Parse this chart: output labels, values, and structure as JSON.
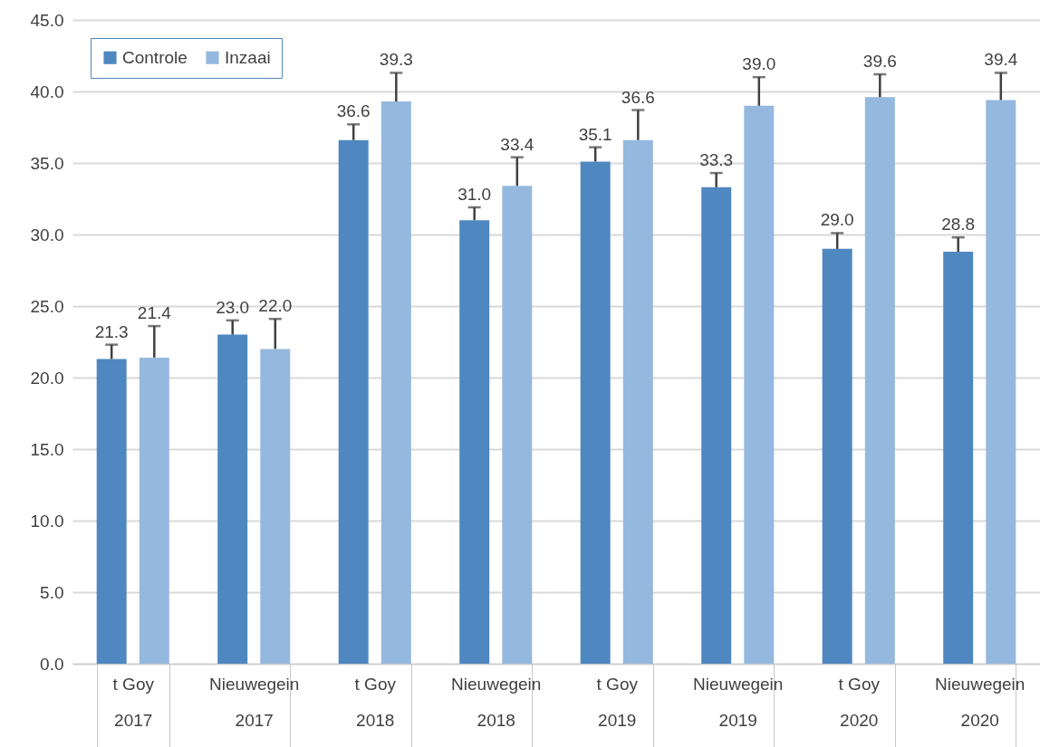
{
  "chart_data": {
    "type": "bar",
    "categories": [
      "t Goy\n2017",
      "Nieuwegein\n2017",
      "t Goy\n2018",
      "Nieuwegein\n2018",
      "t Goy\n2019",
      "Nieuwegein\n2019",
      "t Goy\n2020",
      "Nieuwegein\n2020"
    ],
    "series": [
      {
        "name": "Controle",
        "color": "#4f87c0",
        "values": [
          21.3,
          23.0,
          36.6,
          31.0,
          35.1,
          33.3,
          29.0,
          28.8
        ],
        "value_labels": [
          "21.3",
          "23.0",
          "36.6",
          "31.0",
          "35.1",
          "33.3",
          "29.0",
          "28.8"
        ],
        "errors": [
          [
            21.3,
            22.3
          ],
          [
            23.0,
            24.0
          ],
          [
            36.6,
            37.7
          ],
          [
            31.0,
            31.9
          ],
          [
            35.1,
            36.1
          ],
          [
            33.3,
            34.3
          ],
          [
            29.0,
            30.1
          ],
          [
            28.8,
            29.8
          ]
        ]
      },
      {
        "name": "Inzaai",
        "color": "#95b8de",
        "values": [
          21.4,
          22.0,
          39.3,
          33.4,
          36.6,
          39.0,
          39.6,
          39.4
        ],
        "value_labels": [
          "21.4",
          "22.0",
          "39.3",
          "33.4",
          "36.6",
          "39.0",
          "39.6",
          "39.4"
        ],
        "errors": [
          [
            21.4,
            23.6
          ],
          [
            22.0,
            24.1
          ],
          [
            39.3,
            41.3
          ],
          [
            33.4,
            35.4
          ],
          [
            36.6,
            38.7
          ],
          [
            39.0,
            41.0
          ],
          [
            39.6,
            41.2
          ],
          [
            39.4,
            41.3
          ]
        ]
      }
    ],
    "ylim": [
      0,
      45
    ],
    "yticks": [
      {
        "value": 0,
        "label": "0.0"
      },
      {
        "value": 5,
        "label": "5.0"
      },
      {
        "value": 10,
        "label": "10.0"
      },
      {
        "value": 15,
        "label": "15.0"
      },
      {
        "value": 20,
        "label": "20.0"
      },
      {
        "value": 25,
        "label": "25.0"
      },
      {
        "value": 30,
        "label": "30.0"
      },
      {
        "value": 35,
        "label": "35.0"
      },
      {
        "value": 40,
        "label": "40.0"
      },
      {
        "value": 45,
        "label": "45.0"
      }
    ],
    "grid": "y",
    "legend": "top left"
  }
}
